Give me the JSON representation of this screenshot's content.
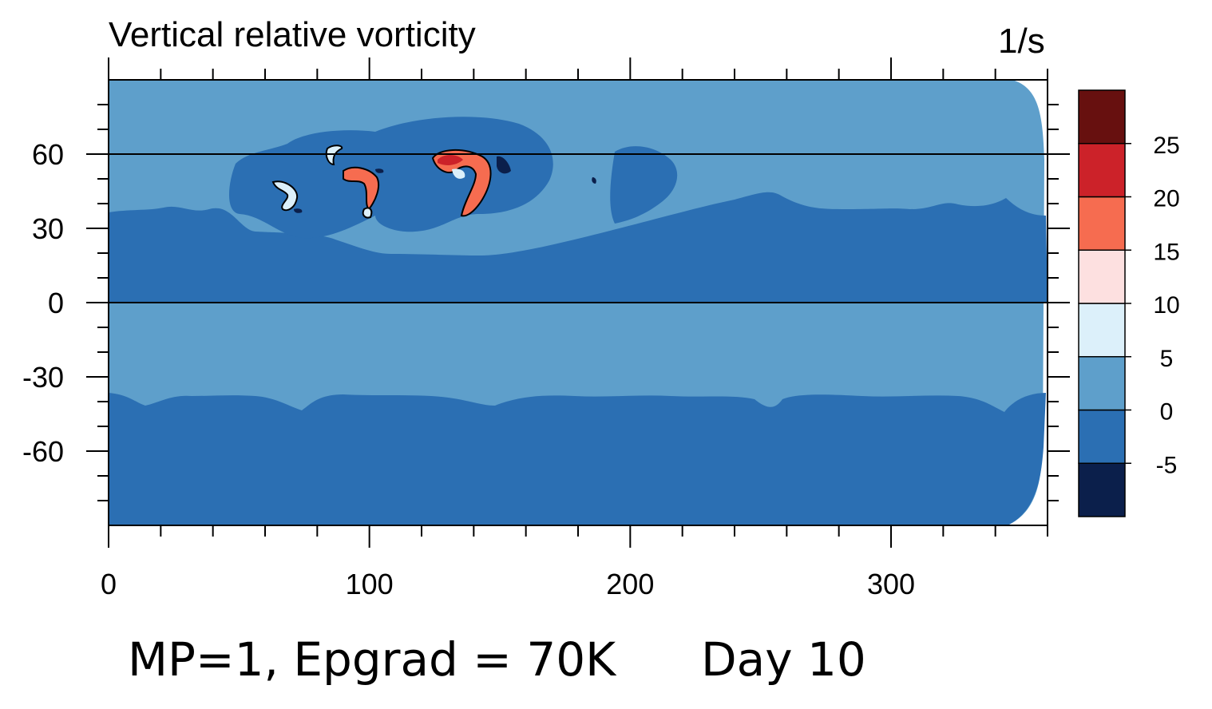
{
  "chart_data": {
    "type": "heatmap",
    "title": "Vertical relative vorticity",
    "units": "1/s",
    "x_axis": {
      "range": [
        0,
        360
      ],
      "major_ticks": [
        0,
        100,
        200,
        300
      ],
      "tick_labels": [
        "0",
        "100",
        "200",
        "300"
      ],
      "minor_tick_step": 20
    },
    "y_axis": {
      "range": [
        -90,
        90
      ],
      "major_ticks": [
        60,
        30,
        0,
        -30,
        -60
      ],
      "tick_labels": [
        "60",
        "30",
        "0",
        "-30",
        "-60"
      ],
      "minor_tick_step": 10
    },
    "reference_lines": [
      {
        "axis": "y",
        "value": 60
      },
      {
        "axis": "y",
        "value": 0
      }
    ],
    "colorbar": {
      "levels": [
        -5,
        0,
        5,
        10,
        15,
        20,
        25
      ],
      "level_labels": [
        "-5",
        "0",
        "5",
        "10",
        "15",
        "20",
        "25"
      ],
      "colors": [
        "#0b1f4b",
        "#2b6fb3",
        "#5e9fcb",
        "#dcf0fa",
        "#fde0e0",
        "#f66c50",
        "#cc2229",
        "#67100f"
      ]
    },
    "regions": [
      {
        "level_band": "-5 to 0",
        "color": "#2b6fb3",
        "description": "mid-latitude bands NH 0-35, SH -35 to -90, NH cyclone region"
      },
      {
        "level_band": "0 to 5",
        "color": "#5e9fcb",
        "description": "equatorial band 0 to -38, polar cap NH 35-90"
      },
      {
        "level_band": "5 to 25",
        "color": "#f66c50",
        "description": "small vortex cores near (92, 52) and (132, 57)"
      }
    ]
  },
  "caption": {
    "run_label": "MP=1, Epgrad = 70K",
    "day_label": "Day 10"
  }
}
